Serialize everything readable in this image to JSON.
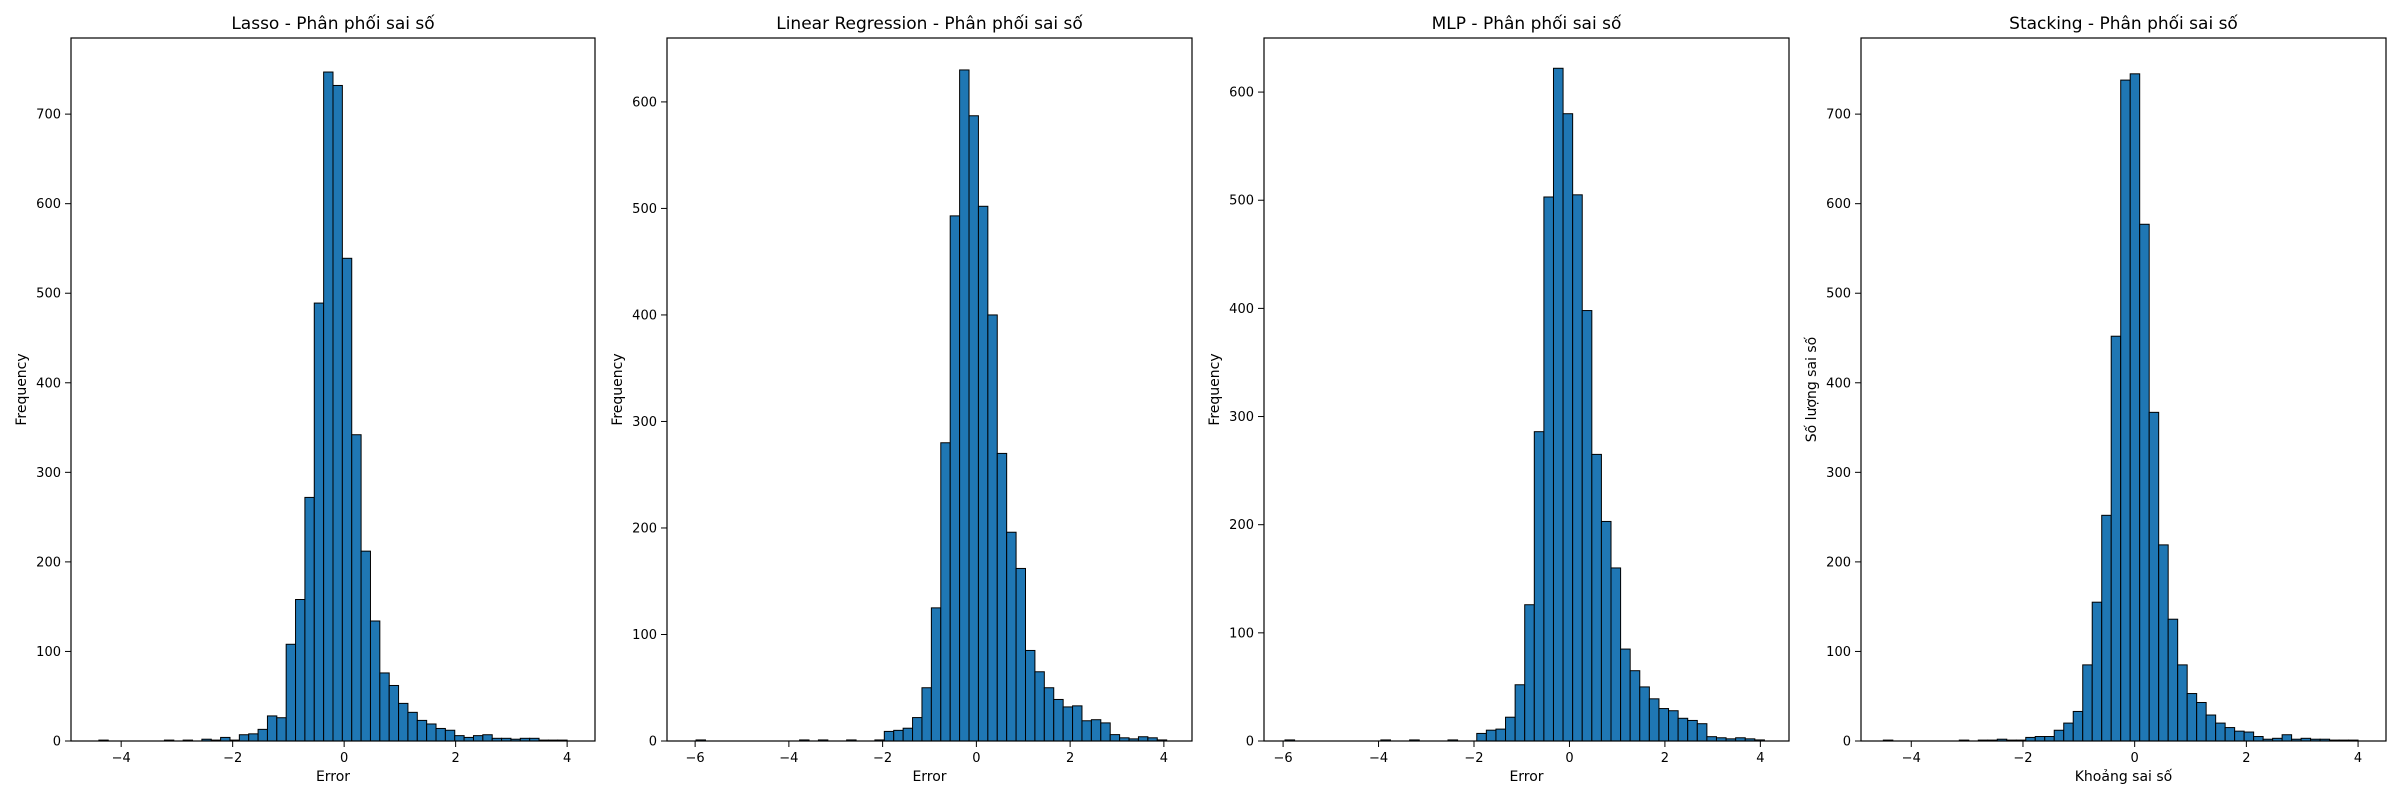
{
  "colors": {
    "bar_fill": "#1f77b4",
    "bar_edge": "#000000",
    "axes": "#000000",
    "background": "#ffffff"
  },
  "chart_data": [
    {
      "type": "bar",
      "title": "Lasso - Phân phối sai số",
      "xlabel": "Error",
      "ylabel": "Frequency",
      "xlim": [
        -4.9,
        4.5
      ],
      "ylim": [
        0,
        785
      ],
      "xticks": [
        -4,
        -2,
        0,
        2,
        4
      ],
      "yticks": [
        0,
        100,
        200,
        300,
        400,
        500,
        600,
        700
      ],
      "grid": false,
      "bins": {
        "start": -4.4,
        "width": 0.168,
        "counts": [
          1,
          0,
          0,
          0,
          0,
          0,
          0,
          1,
          0,
          1,
          0,
          2,
          1,
          4,
          1,
          7,
          8,
          13,
          28,
          26,
          108,
          158,
          272,
          489,
          747,
          732,
          539,
          342,
          212,
          134,
          76,
          62,
          42,
          32,
          23,
          19,
          14,
          12,
          6,
          4,
          6,
          7,
          3,
          3,
          2,
          3,
          3,
          1,
          1,
          1
        ]
      }
    },
    {
      "type": "bar",
      "title": "Linear Regression - Phân phối sai số",
      "xlabel": "Error",
      "ylabel": "Frequency",
      "xlim": [
        -6.6,
        4.6
      ],
      "ylim": [
        0,
        660
      ],
      "xticks": [
        -6,
        -4,
        -2,
        0,
        2,
        4
      ],
      "yticks": [
        0,
        100,
        200,
        300,
        400,
        500,
        600
      ],
      "grid": false,
      "bins": {
        "start": -5.98,
        "width": 0.2008,
        "counts": [
          1,
          0,
          0,
          0,
          0,
          0,
          0,
          0,
          0,
          0,
          0,
          1,
          0,
          1,
          0,
          0,
          1,
          0,
          0,
          1,
          9,
          10,
          12,
          22,
          50,
          125,
          280,
          493,
          630,
          587,
          502,
          400,
          270,
          196,
          162,
          85,
          65,
          50,
          39,
          32,
          33,
          19,
          20,
          17,
          6,
          3,
          2,
          4,
          3,
          1
        ]
      }
    },
    {
      "type": "bar",
      "title": "MLP - Phân phối sai số",
      "xlabel": "Error",
      "ylabel": "Frequency",
      "xlim": [
        -6.4,
        4.6
      ],
      "ylim": [
        0,
        650
      ],
      "xticks": [
        -6,
        -4,
        -2,
        0,
        2,
        4
      ],
      "yticks": [
        0,
        100,
        200,
        300,
        400,
        500,
        600
      ],
      "grid": false,
      "bins": {
        "start": -5.96,
        "width": 0.2009,
        "counts": [
          1,
          0,
          0,
          0,
          0,
          0,
          0,
          0,
          0,
          0,
          1,
          0,
          0,
          1,
          0,
          0,
          0,
          1,
          0,
          0,
          7,
          10,
          11,
          22,
          52,
          126,
          286,
          503,
          622,
          580,
          505,
          398,
          265,
          203,
          160,
          85,
          65,
          50,
          39,
          30,
          28,
          21,
          19,
          16,
          4,
          3,
          2,
          3,
          2,
          1
        ]
      }
    },
    {
      "type": "bar",
      "title": "Stacking - Phân phối sai số",
      "xlabel": "Khoảng sai số",
      "ylabel": "Số lượng sai số",
      "xlim": [
        -4.9,
        4.5
      ],
      "ylim": [
        0,
        785
      ],
      "xticks": [
        -4,
        -2,
        0,
        2,
        4
      ],
      "yticks": [
        0,
        100,
        200,
        300,
        400,
        500,
        600,
        700
      ],
      "grid": false,
      "bins": {
        "start": -4.5,
        "width": 0.17,
        "counts": [
          1,
          0,
          0,
          0,
          0,
          0,
          0,
          0,
          1,
          0,
          1,
          1,
          2,
          1,
          1,
          4,
          5,
          5,
          12,
          20,
          33,
          85,
          155,
          252,
          452,
          738,
          745,
          577,
          367,
          219,
          136,
          85,
          53,
          43,
          29,
          20,
          15,
          11,
          10,
          5,
          2,
          3,
          7,
          2,
          3,
          2,
          2,
          1,
          1,
          1
        ]
      }
    }
  ]
}
